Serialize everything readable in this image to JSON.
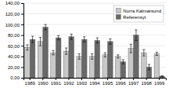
{
  "chart_data": {
    "type": "bar",
    "categories": [
      "1989",
      "1990",
      "1991",
      "1992",
      "1993",
      "1994",
      "1995",
      "1996",
      "1997",
      "1998",
      "1999"
    ],
    "series": [
      {
        "name": "Norra Kalmarsund",
        "color": "#c8c8c8",
        "values": [
          57,
          68,
          47,
          50,
          40,
          40,
          43,
          40,
          55,
          47,
          45
        ],
        "errors": [
          5,
          8,
          4,
          6,
          5,
          5,
          4,
          3,
          8,
          6,
          3
        ]
      },
      {
        "name": "Referensyt",
        "color": "#686868",
        "values": [
          72,
          95,
          75,
          77,
          72,
          70,
          68,
          30,
          80,
          20,
          3
        ],
        "errors": [
          6,
          5,
          4,
          5,
          5,
          5,
          5,
          4,
          10,
          5,
          1
        ]
      }
    ],
    "ylim": [
      0,
      140
    ],
    "yticks": [
      {
        "value": 0,
        "label": "0,00"
      },
      {
        "value": 20,
        "label": "20,00"
      },
      {
        "value": 40,
        "label": "40,00"
      },
      {
        "value": 60,
        "label": "60,00"
      },
      {
        "value": 80,
        "label": "80,00"
      },
      {
        "value": 100,
        "label": "100,00"
      },
      {
        "value": 120,
        "label": "120,00"
      },
      {
        "value": 140,
        "label": "140,00"
      }
    ],
    "grid": true,
    "legend": "top-right"
  }
}
